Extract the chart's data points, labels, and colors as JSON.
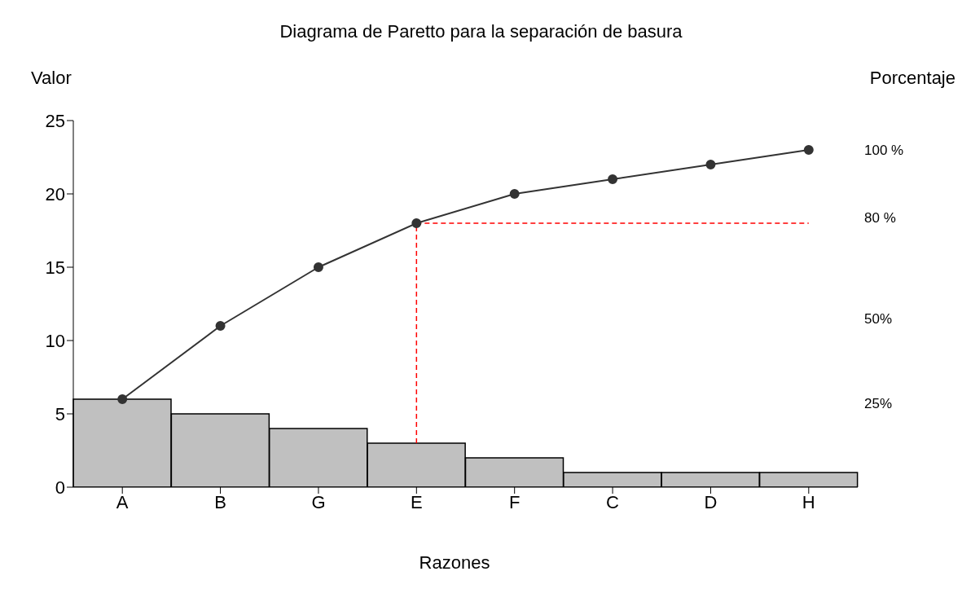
{
  "chart_data": {
    "type": "bar",
    "title": "Diagrama de Paretto para la separación de basura",
    "xlabel": "Razones",
    "ylabel": "Valor",
    "y2label": "Porcentaje",
    "categories": [
      "A",
      "B",
      "G",
      "E",
      "F",
      "C",
      "D",
      "H"
    ],
    "series": [
      {
        "color": "#c0c0c0",
        "values": [
          6,
          5,
          4,
          3,
          2,
          1,
          1,
          1
        ]
      },
      {
        "type": "line",
        "color": "#333333",
        "values": [
          6,
          11,
          15,
          18,
          20,
          21,
          22,
          23
        ],
        "marker": "circle",
        "line_style": "solid"
      }
    ],
    "ylim": [
      0,
      25
    ],
    "yticks": [
      0,
      5,
      10,
      15,
      20,
      25
    ],
    "y2lim": [
      0,
      108.7
    ],
    "y2ticks": [
      {
        "value": 25,
        "label": "25%"
      },
      {
        "value": 50,
        "label": "50%"
      },
      {
        "value": 80,
        "label": "80 %"
      },
      {
        "value": 100,
        "label": "100 %"
      }
    ],
    "ref_lines": [
      {
        "axis": "y",
        "value": 18,
        "color": "#ff0000",
        "line_style": "dashed"
      },
      {
        "axis": "x",
        "value": "E",
        "color": "#ff0000",
        "line_style": "dashed"
      }
    ]
  }
}
